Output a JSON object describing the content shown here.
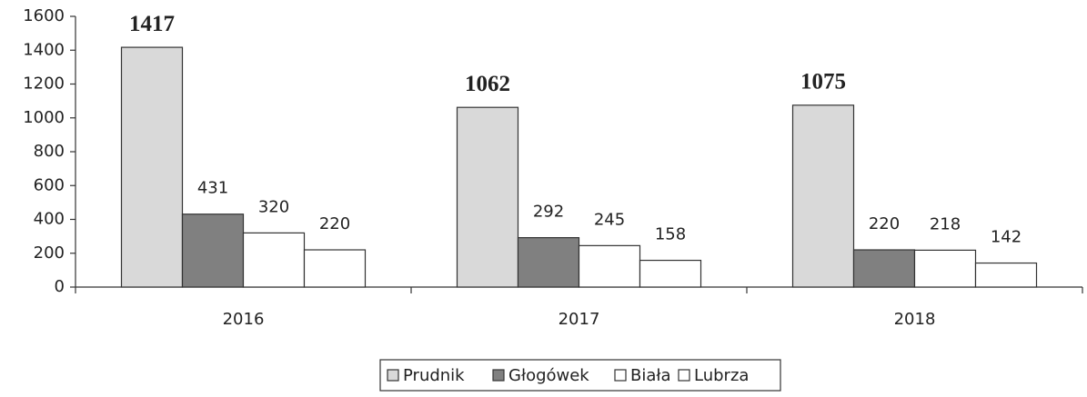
{
  "chart_data": {
    "type": "bar",
    "categories": [
      "2016",
      "2017",
      "2018"
    ],
    "series": [
      {
        "name": "Prudnik",
        "color": "#d9d9d9",
        "values": [
          1417,
          1062,
          1075
        ]
      },
      {
        "name": "Głogówek",
        "color": "#808080",
        "values": [
          431,
          292,
          220
        ]
      },
      {
        "name": "Biała",
        "color": "#ffffff",
        "values": [
          320,
          245,
          218
        ]
      },
      {
        "name": "Lubrza",
        "color": "#ffffff",
        "values": [
          220,
          158,
          142
        ]
      }
    ],
    "ylim": [
      0,
      1600
    ],
    "yticks": [
      0,
      200,
      400,
      600,
      800,
      1000,
      1200,
      1400,
      1600
    ],
    "grid": false,
    "legend": "bottom"
  }
}
